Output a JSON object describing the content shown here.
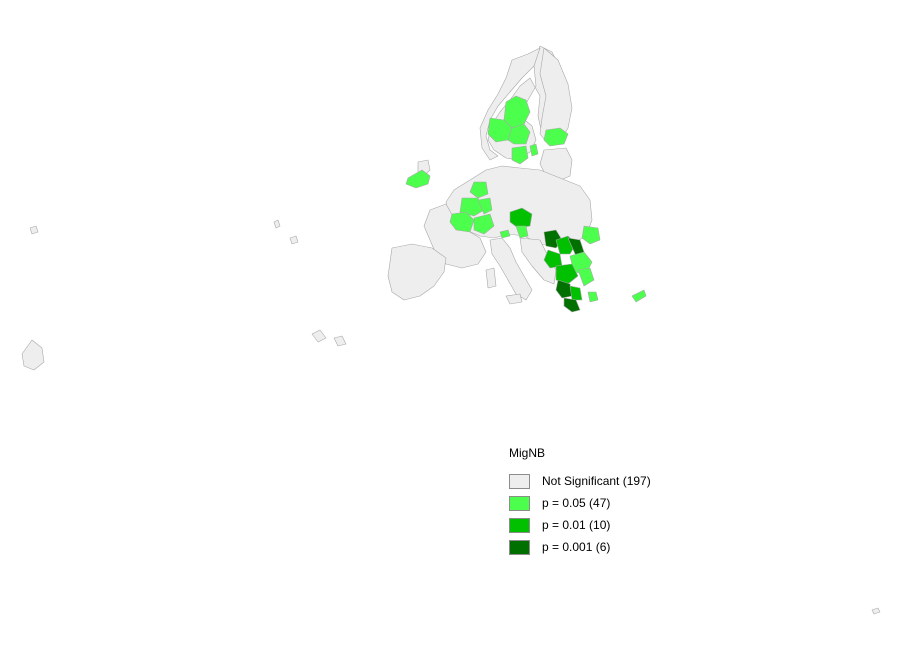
{
  "map": {
    "legend": {
      "title": "MigNB",
      "items": [
        {
          "label": "Not Significant (197)",
          "color": "#eeeeee",
          "class": "not-significant"
        },
        {
          "label": "p = 0.05 (47)",
          "color": "#4cff4c",
          "class": "p005"
        },
        {
          "label": "p = 0.01 (10)",
          "color": "#00c000",
          "class": "p001"
        },
        {
          "label": "p = 0.001 (6)",
          "color": "#007000",
          "class": "p0001"
        }
      ]
    }
  }
}
